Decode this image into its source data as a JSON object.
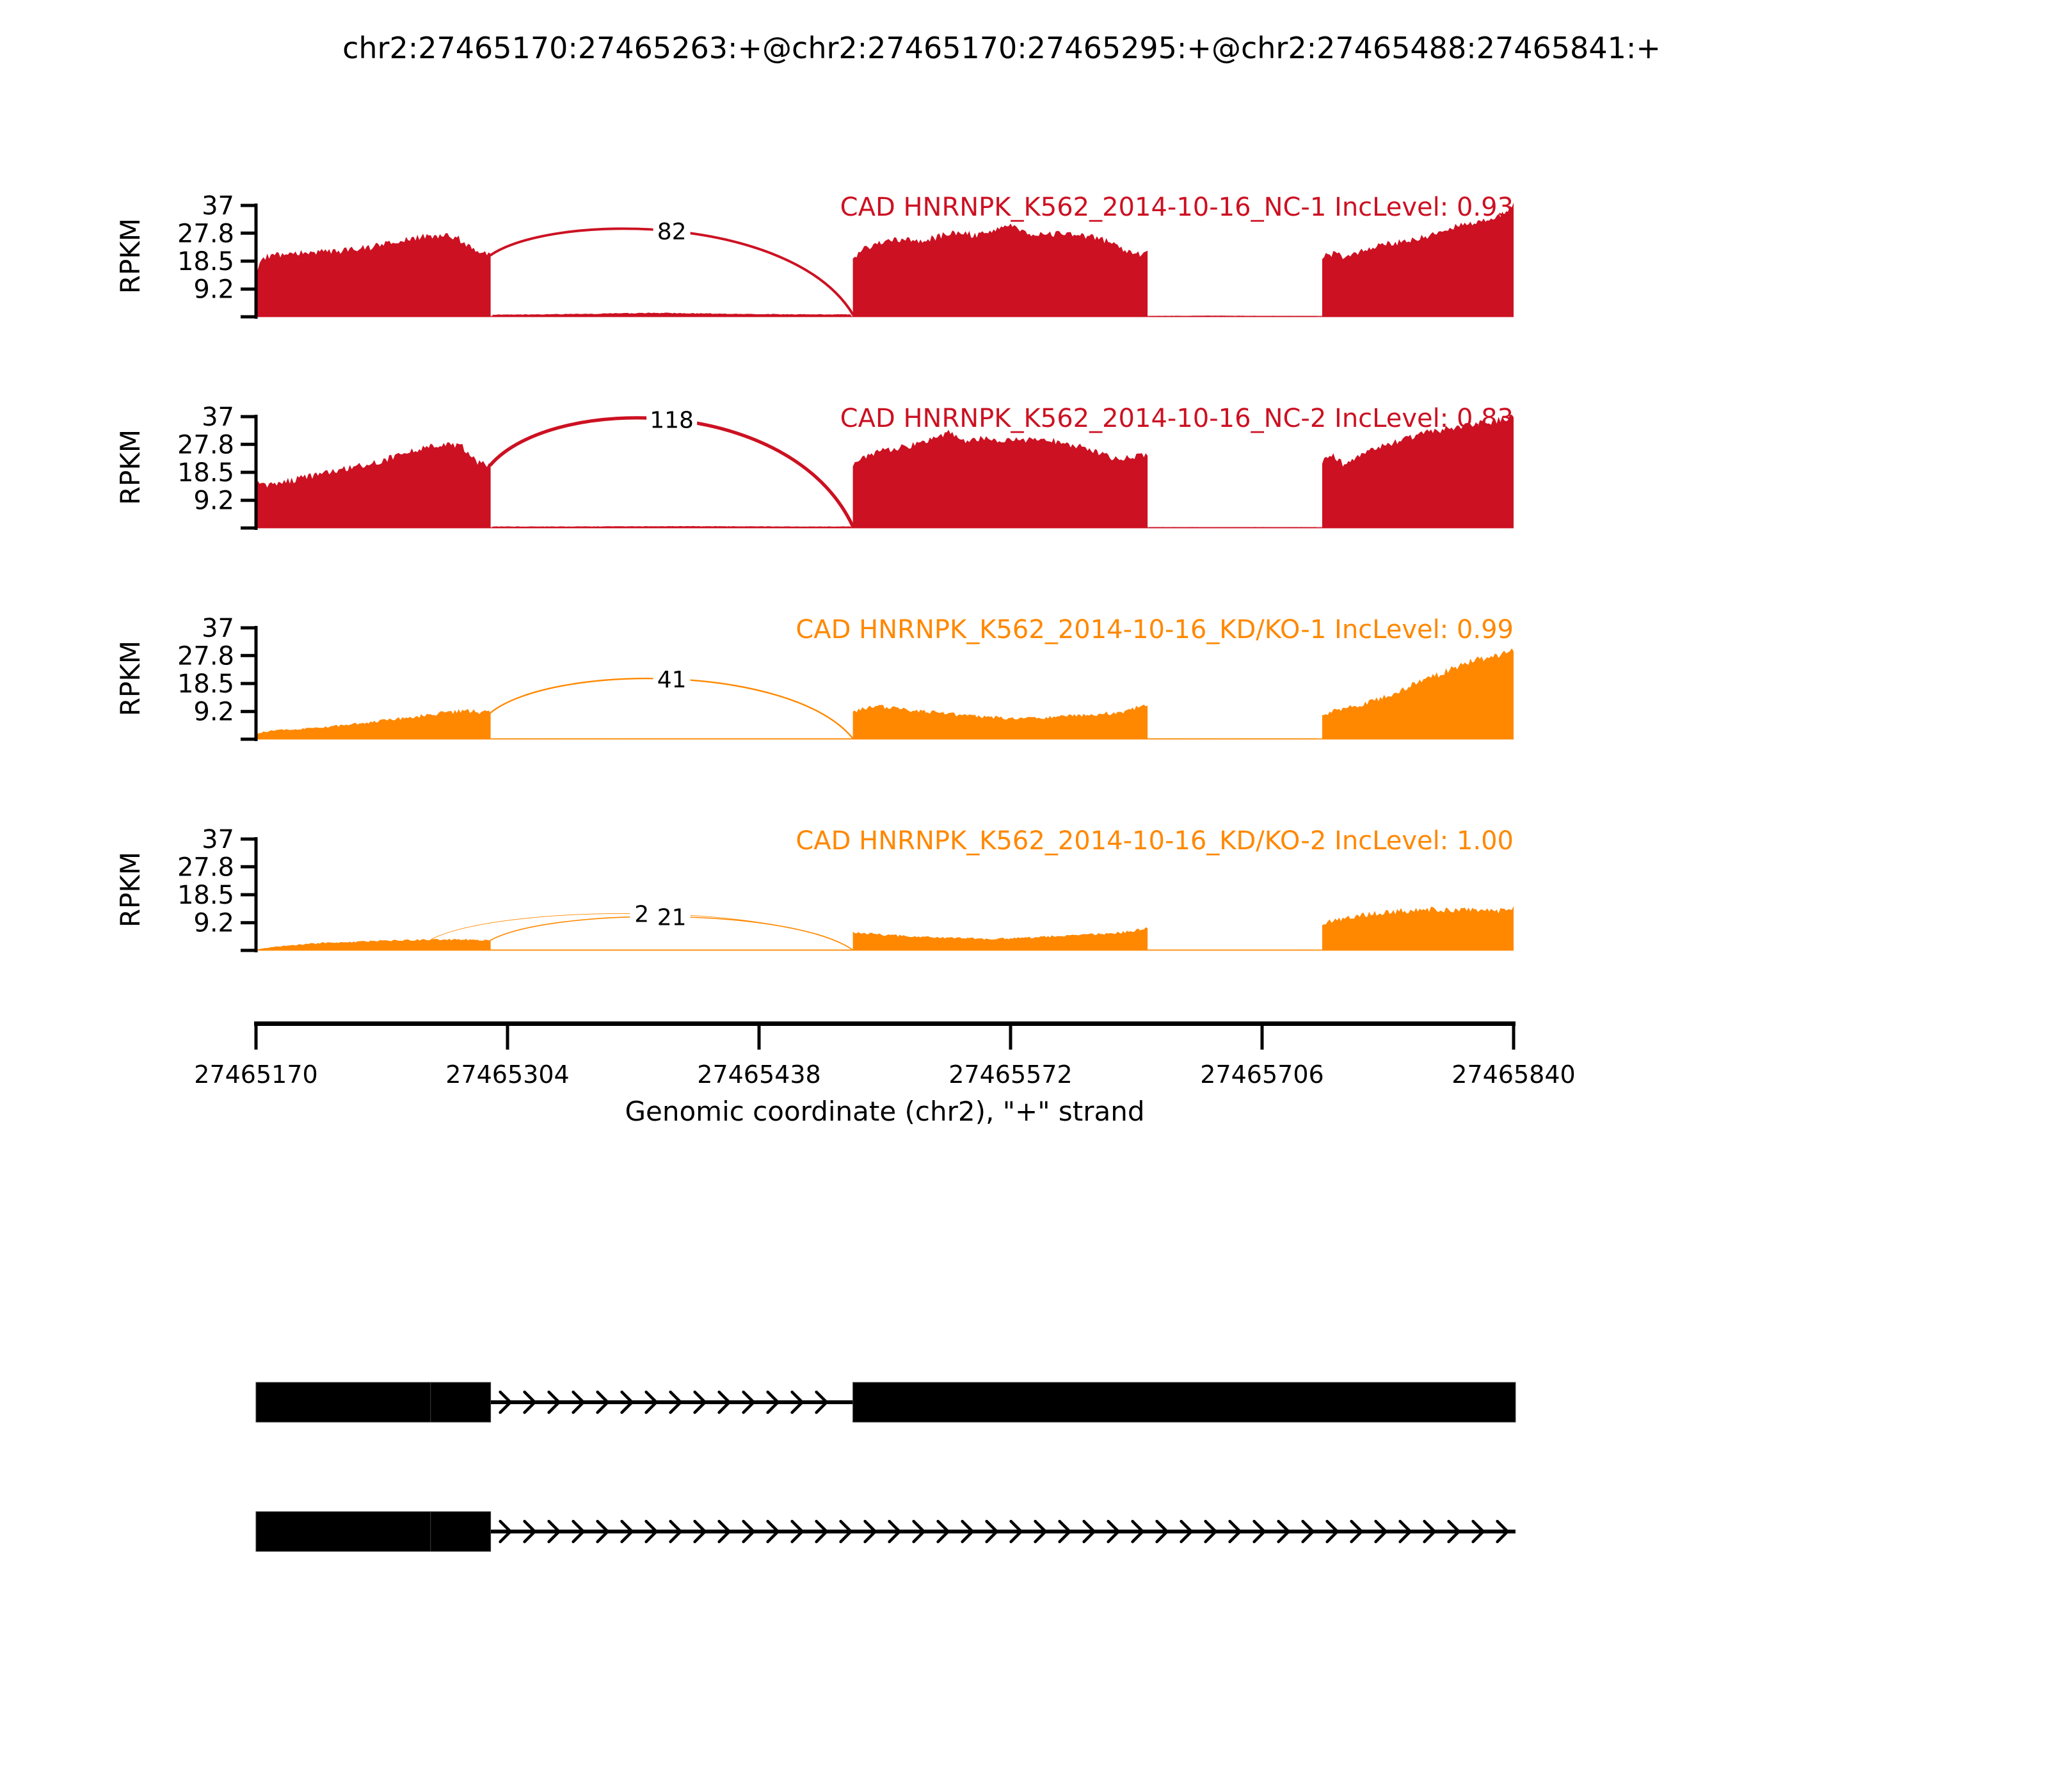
{
  "title": "chr2:27465170:27465263:+@chr2:27465170:27465295:+@chr2:27465488:27465841:+",
  "y_axis": {
    "label": "RPKM",
    "ticks": [
      "37",
      "27.8",
      "18.5",
      "9.2"
    ],
    "tick_values": [
      37,
      27.8,
      18.5,
      9.2
    ],
    "max": 37
  },
  "x_axis": {
    "label": "Genomic coordinate (chr2), \"+\" strand",
    "ticks": [
      "27465170",
      "27465304",
      "27465438",
      "27465572",
      "27465706",
      "27465840"
    ],
    "tick_values": [
      27465170,
      27465304,
      27465438,
      27465572,
      27465706,
      27465840
    ],
    "range": [
      27465170,
      27465840
    ]
  },
  "colors": {
    "control": "#CC1122",
    "knockdown": "#FF8800",
    "annotation": "#000000"
  },
  "chart_data": {
    "type": "area",
    "subtype": "sashimi-plot",
    "x_range": [
      27465170,
      27465840
    ],
    "y_max": 37,
    "tracks": [
      {
        "label": "CAD HNRNPK_K562_2014-10-16_NC-1",
        "inc_level": "IncLevel: 0.93",
        "color": "#CC1122",
        "coverage_segments": [
          [
            [
              27465170,
              16
            ],
            [
              27465175,
              20
            ],
            [
              27465185,
              21
            ],
            [
              27465200,
              21.5
            ],
            [
              27465215,
              22
            ],
            [
              27465230,
              23
            ],
            [
              27465245,
              25
            ],
            [
              27465258,
              26.5
            ],
            [
              27465270,
              27
            ],
            [
              27465278,
              26
            ],
            [
              27465288,
              21
            ],
            [
              27465295,
              20.5
            ]
          ],
          [
            [
              27465296,
              0.7
            ],
            [
              27465320,
              0.8
            ],
            [
              27465350,
              1.0
            ],
            [
              27465380,
              1.3
            ],
            [
              27465410,
              1.1
            ],
            [
              27465440,
              0.9
            ],
            [
              27465470,
              0.8
            ],
            [
              27465487,
              0.8
            ]
          ],
          [
            [
              27465488,
              20
            ],
            [
              27465495,
              23
            ],
            [
              27465505,
              25
            ],
            [
              27465515,
              26
            ],
            [
              27465525,
              25
            ],
            [
              27465535,
              27
            ],
            [
              27465545,
              28
            ],
            [
              27465555,
              27
            ],
            [
              27465565,
              29
            ],
            [
              27465572,
              31
            ],
            [
              27465580,
              28
            ],
            [
              27465590,
              27
            ],
            [
              27465600,
              28
            ],
            [
              27465610,
              27
            ],
            [
              27465620,
              26
            ],
            [
              27465630,
              23
            ],
            [
              27465640,
              21
            ],
            [
              27465645,
              21
            ]
          ],
          [
            [
              27465646,
              0.3
            ],
            [
              27465680,
              0.4
            ],
            [
              27465710,
              0.3
            ],
            [
              27465735,
              0.3
            ]
          ],
          [
            [
              27465738,
              20
            ],
            [
              27465745,
              21
            ],
            [
              27465750,
              20
            ],
            [
              27465760,
              22
            ],
            [
              27465770,
              24
            ],
            [
              27465780,
              25
            ],
            [
              27465790,
              26
            ],
            [
              27465800,
              28
            ],
            [
              27465810,
              30
            ],
            [
              27465820,
              31
            ],
            [
              27465830,
              33
            ],
            [
              27465836,
              35
            ],
            [
              27465840,
              37.5
            ]
          ]
        ],
        "junctions": [
          {
            "start": 27465295,
            "end": 27465488,
            "count": 82,
            "apex": 28.5
          }
        ]
      },
      {
        "label": "CAD HNRNPK_K562_2014-10-16_NC-2",
        "inc_level": "IncLevel: 0.83",
        "color": "#CC1122",
        "coverage_segments": [
          [
            [
              27465170,
              15
            ],
            [
              27465174,
              14
            ],
            [
              27465180,
              15
            ],
            [
              27465190,
              16
            ],
            [
              27465205,
              18
            ],
            [
              27465220,
              20
            ],
            [
              27465235,
              22
            ],
            [
              27465250,
              25
            ],
            [
              27465262,
              27
            ],
            [
              27465272,
              28
            ],
            [
              27465280,
              27
            ],
            [
              27465288,
              22
            ],
            [
              27465295,
              21
            ]
          ],
          [
            [
              27465296,
              0.5
            ],
            [
              27465340,
              0.5
            ],
            [
              27465400,
              0.6
            ],
            [
              27465460,
              0.5
            ],
            [
              27465487,
              0.5
            ]
          ],
          [
            [
              27465488,
              21
            ],
            [
              27465495,
              24
            ],
            [
              27465505,
              26
            ],
            [
              27465515,
              27
            ],
            [
              27465525,
              28
            ],
            [
              27465532,
              30
            ],
            [
              27465540,
              32
            ],
            [
              27465548,
              29
            ],
            [
              27465556,
              30
            ],
            [
              27465565,
              29
            ],
            [
              27465572,
              30
            ],
            [
              27465580,
              29
            ],
            [
              27465590,
              30
            ],
            [
              27465600,
              28
            ],
            [
              27465610,
              27
            ],
            [
              27465618,
              25
            ],
            [
              27465628,
              23
            ],
            [
              27465635,
              23.5
            ],
            [
              27465645,
              24
            ]
          ],
          [
            [
              27465646,
              0.3
            ],
            [
              27465700,
              0.3
            ],
            [
              27465735,
              0.3
            ]
          ],
          [
            [
              27465738,
              22
            ],
            [
              27465744,
              24
            ],
            [
              27465750,
              21
            ],
            [
              27465756,
              23
            ],
            [
              27465765,
              26
            ],
            [
              27465775,
              28
            ],
            [
              27465785,
              30
            ],
            [
              27465795,
              32
            ],
            [
              27465805,
              33
            ],
            [
              27465815,
              34
            ],
            [
              27465825,
              35
            ],
            [
              27465833,
              36
            ],
            [
              27465840,
              37
            ]
          ]
        ],
        "junctions": [
          {
            "start": 27465295,
            "end": 27465488,
            "count": 118,
            "apex": 36
          }
        ]
      },
      {
        "label": "CAD HNRNPK_K562_2014-10-16_KD/KO-1",
        "inc_level": "IncLevel: 0.99",
        "color": "#FF8800",
        "coverage_segments": [
          [
            [
              27465170,
              2
            ],
            [
              27465180,
              3
            ],
            [
              27465195,
              3.5
            ],
            [
              27465215,
              4.5
            ],
            [
              27465235,
              6
            ],
            [
              27465255,
              7.5
            ],
            [
              27465272,
              9
            ],
            [
              27465283,
              9.5
            ],
            [
              27465290,
              9
            ],
            [
              27465295,
              8.8
            ]
          ],
          [
            [
              27465296,
              0.2
            ],
            [
              27465400,
              0.25
            ],
            [
              27465487,
              0.25
            ]
          ],
          [
            [
              27465488,
              9
            ],
            [
              27465498,
              11
            ],
            [
              27465508,
              10.5
            ],
            [
              27465520,
              9.5
            ],
            [
              27465532,
              9
            ],
            [
              27465545,
              8
            ],
            [
              27465558,
              7.5
            ],
            [
              27465572,
              7
            ],
            [
              27465585,
              7
            ],
            [
              27465598,
              7.5
            ],
            [
              27465610,
              8
            ],
            [
              27465622,
              8.5
            ],
            [
              27465632,
              9
            ],
            [
              27465640,
              10.5
            ],
            [
              27465645,
              11.5
            ]
          ],
          [
            [
              27465646,
              0.2
            ],
            [
              27465735,
              0.2
            ]
          ],
          [
            [
              27465738,
              8
            ],
            [
              27465748,
              10
            ],
            [
              27465758,
              11.5
            ],
            [
              27465768,
              13.5
            ],
            [
              27465778,
              16
            ],
            [
              27465788,
              18.5
            ],
            [
              27465798,
              21
            ],
            [
              27465808,
              23.5
            ],
            [
              27465818,
              26
            ],
            [
              27465828,
              27.5
            ],
            [
              27465835,
              28.5
            ],
            [
              27465840,
              30
            ]
          ]
        ],
        "junctions": [
          {
            "start": 27465295,
            "end": 27465488,
            "count": 41,
            "apex": 20
          }
        ]
      },
      {
        "label": "CAD HNRNPK_K562_2014-10-16_KD/KO-2",
        "inc_level": "IncLevel: 1.00",
        "color": "#FF8800",
        "coverage_segments": [
          [
            [
              27465170,
              0.3
            ],
            [
              27465178,
              1
            ],
            [
              27465190,
              1.8
            ],
            [
              27465205,
              2.4
            ],
            [
              27465220,
              2.8
            ],
            [
              27465235,
              3.2
            ],
            [
              27465250,
              3.4
            ],
            [
              27465263,
              3.6
            ],
            [
              27465275,
              3.6
            ],
            [
              27465285,
              3.5
            ],
            [
              27465295,
              3.4
            ]
          ],
          [
            [
              27465296,
              0.15
            ],
            [
              27465400,
              0.15
            ],
            [
              27465487,
              0.15
            ]
          ],
          [
            [
              27465488,
              6
            ],
            [
              27465498,
              5.5
            ],
            [
              27465510,
              5
            ],
            [
              27465522,
              4.6
            ],
            [
              27465535,
              4.2
            ],
            [
              27465548,
              4
            ],
            [
              27465560,
              3.8
            ],
            [
              27465572,
              4
            ],
            [
              27465585,
              4.3
            ],
            [
              27465598,
              4.8
            ],
            [
              27465610,
              5.2
            ],
            [
              27465622,
              5.6
            ],
            [
              27465632,
              6
            ],
            [
              27465640,
              6.8
            ],
            [
              27465645,
              7.2
            ]
          ],
          [
            [
              27465646,
              0.1
            ],
            [
              27465735,
              0.1
            ]
          ],
          [
            [
              27465738,
              9
            ],
            [
              27465748,
              10.5
            ],
            [
              27465758,
              11.5
            ],
            [
              27465768,
              12.5
            ],
            [
              27465778,
              13
            ],
            [
              27465788,
              13.5
            ],
            [
              27465798,
              13.8
            ],
            [
              27465808,
              13.6
            ],
            [
              27465818,
              13.2
            ],
            [
              27465828,
              13
            ],
            [
              27465835,
              13.5
            ],
            [
              27465840,
              13.8
            ]
          ]
        ],
        "junctions": [
          {
            "start": 27465263,
            "end": 27465488,
            "count": 2,
            "apex": 12.2
          },
          {
            "start": 27465295,
            "end": 27465488,
            "count": 21,
            "apex": 11.2
          }
        ]
      }
    ],
    "isoforms": [
      {
        "exons": [
          [
            27465170,
            27465263
          ],
          [
            27465263,
            27465295
          ],
          [
            27465488,
            27465841
          ]
        ],
        "intron": [
          27465295,
          27465488
        ]
      },
      {
        "exons": [
          [
            27465170,
            27465263
          ],
          [
            27465263,
            27465295
          ]
        ],
        "intron": [
          27465295,
          27465841
        ]
      }
    ]
  }
}
